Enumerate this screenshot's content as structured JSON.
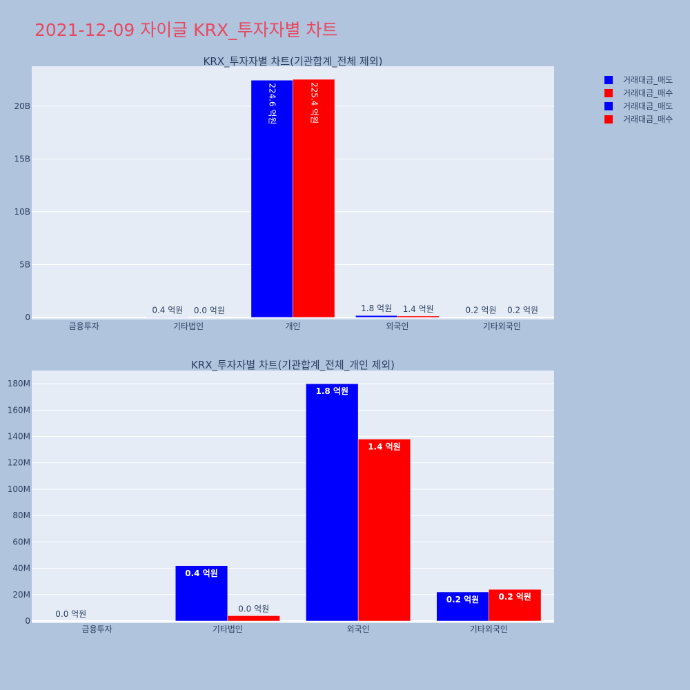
{
  "page": {
    "title": "2021-12-09 자이글 KRX_투자자별 차트",
    "legend": [
      {
        "label": "거래대금_매도",
        "color": "#0000ff"
      },
      {
        "label": "거래대금_매수",
        "color": "#ff0000"
      },
      {
        "label": "거래대금_매도",
        "color": "#0000ff"
      },
      {
        "label": "거래대금_매수",
        "color": "#ff0000"
      }
    ]
  },
  "chart_data": [
    {
      "type": "bar",
      "title": "KRX_투자자별 차트(기관합계_전체 제외)",
      "categories": [
        "금융투자",
        "기타법인",
        "개인",
        "외국인",
        "기타외국인"
      ],
      "series": [
        {
          "name": "거래대금_매도",
          "color": "#0000ff",
          "values": [
            0,
            42000000,
            22460000000,
            180000000,
            22000000
          ],
          "labels": [
            "",
            "0.4 억원",
            "224.6 억원",
            "1.8 억원",
            "0.2 억원"
          ]
        },
        {
          "name": "거래대금_매수",
          "color": "#ff0000",
          "values": [
            0,
            4000000,
            22540000000,
            138000000,
            24000000
          ],
          "labels": [
            "",
            "0.0 억원",
            "225.4 억원",
            "1.4 억원",
            "0.2 억원"
          ]
        }
      ],
      "ylim": [
        0,
        23780000000
      ],
      "yticks": [
        0,
        5000000000,
        10000000000,
        15000000000,
        20000000000
      ],
      "ytick_labels": [
        "0",
        "5B",
        "10B",
        "15B",
        "20B"
      ],
      "grid": true
    },
    {
      "type": "bar",
      "title": "KRX_투자자별 차트(기관합계_전체_개인 제외)",
      "categories": [
        "금융투자",
        "기타법인",
        "외국인",
        "기타외국인"
      ],
      "series": [
        {
          "name": "거래대금_매도",
          "color": "#0000ff",
          "values": [
            0,
            42000000,
            180000000,
            22000000
          ],
          "labels": [
            "0.0 억원",
            "0.4 억원",
            "1.8 억원",
            "0.2 억원"
          ]
        },
        {
          "name": "거래대금_매수",
          "color": "#ff0000",
          "values": [
            0,
            4000000,
            138000000,
            24000000
          ],
          "labels": [
            "",
            "0.0 억원",
            "1.4 억원",
            "0.2 억원"
          ]
        }
      ],
      "ylim": [
        0,
        190000000
      ],
      "yticks": [
        0,
        20000000,
        40000000,
        60000000,
        80000000,
        100000000,
        120000000,
        140000000,
        160000000,
        180000000
      ],
      "ytick_labels": [
        "0",
        "20M",
        "40M",
        "60M",
        "80M",
        "100M",
        "120M",
        "140M",
        "160M",
        "180M"
      ],
      "grid": true
    }
  ]
}
